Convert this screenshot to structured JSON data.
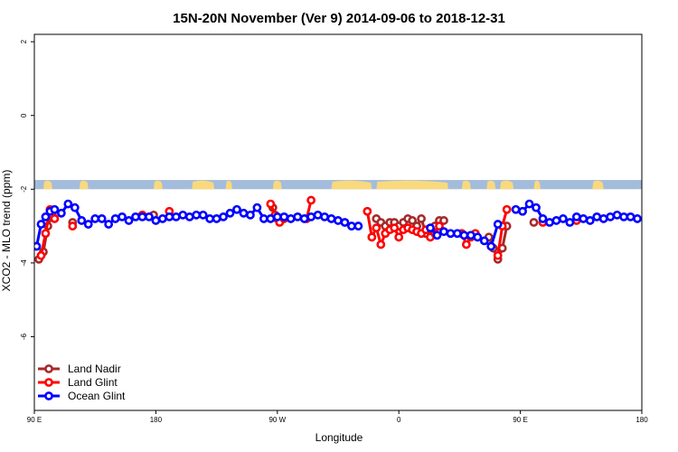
{
  "chart_data": {
    "type": "line",
    "title": "15N-20N November (Ver 9)   2014-09-06 to 2018-12-31",
    "xlabel": "Longitude",
    "ylabel": "XCO2 - MLO trend (ppm)",
    "xlim": [
      -90,
      180
    ],
    "ylim": [
      -8,
      2.2
    ],
    "x_ticks": [
      {
        "value": -90,
        "label": "90 E"
      },
      {
        "value": -36,
        "label": "180"
      },
      {
        "value": 18,
        "label": "90 W"
      },
      {
        "value": 72,
        "label": "0"
      },
      {
        "value": 126,
        "label": "90 E"
      },
      {
        "value": 180,
        "label": "180"
      }
    ],
    "y_ticks": [
      {
        "value": 2,
        "label": "2"
      },
      {
        "value": 0,
        "label": "0"
      },
      {
        "value": -2,
        "label": "-2"
      },
      {
        "value": -4,
        "label": "-4"
      },
      {
        "value": -6,
        "label": "-6"
      }
    ],
    "map_strip": {
      "y_top": -1.75,
      "y_bottom": -2.0,
      "ocean_color": "#a4bcdc",
      "land_color": "#f9d97c"
    },
    "legend_position": "bottom-left",
    "series": [
      {
        "name": "Land Nadir",
        "color": "#a52a2a",
        "segments": [
          [
            [
              -88,
              -3.9
            ],
            [
              -86,
              -3.7
            ],
            [
              -84,
              -3.0
            ],
            [
              -82,
              -2.7
            ]
          ],
          [
            [
              -73,
              -2.9
            ]
          ],
          [
            [
              -37,
              -2.7
            ]
          ],
          [
            [
              16,
              -2.5
            ],
            [
              18,
              -2.8
            ]
          ],
          [
            [
              62,
              -2.8
            ],
            [
              64,
              -2.9
            ],
            [
              66,
              -3.0
            ],
            [
              68,
              -2.9
            ],
            [
              70,
              -2.9
            ],
            [
              72,
              -3.0
            ],
            [
              74,
              -2.9
            ],
            [
              76,
              -2.8
            ],
            [
              78,
              -2.85
            ],
            [
              80,
              -3.0
            ],
            [
              82,
              -2.8
            ],
            [
              84,
              -3.2
            ],
            [
              86,
              -3.1
            ],
            [
              88,
              -3.0
            ],
            [
              90,
              -2.85
            ],
            [
              92,
              -2.85
            ]
          ],
          [
            [
              112,
              -3.3
            ],
            [
              114,
              -3.6
            ],
            [
              116,
              -3.9
            ],
            [
              118,
              -3.6
            ],
            [
              120,
              -3.0
            ]
          ],
          [
            [
              132,
              -2.9
            ]
          ]
        ]
      },
      {
        "name": "Land Glint",
        "color": "#ff0000",
        "segments": [
          [
            [
              -87,
              -3.8
            ],
            [
              -85,
              -3.2
            ],
            [
              -83,
              -2.55
            ],
            [
              -81,
              -2.8
            ]
          ],
          [
            [
              -73,
              -3.0
            ]
          ],
          [
            [
              -42,
              -2.7
            ]
          ],
          [
            [
              -30,
              -2.6
            ]
          ],
          [
            [
              15,
              -2.4
            ],
            [
              17,
              -2.7
            ],
            [
              19,
              -2.9
            ],
            [
              21,
              -2.8
            ]
          ],
          [
            [
              31,
              -2.8
            ],
            [
              33,
              -2.3
            ]
          ],
          [
            [
              58,
              -2.6
            ],
            [
              60,
              -3.3
            ],
            [
              62,
              -3.05
            ],
            [
              64,
              -3.5
            ],
            [
              66,
              -3.2
            ],
            [
              68,
              -3.1
            ],
            [
              70,
              -3.05
            ],
            [
              72,
              -3.3
            ],
            [
              74,
              -3.1
            ],
            [
              76,
              -3.05
            ],
            [
              78,
              -3.1
            ],
            [
              80,
              -3.15
            ],
            [
              82,
              -3.2
            ],
            [
              84,
              -3.1
            ],
            [
              86,
              -3.3
            ],
            [
              88,
              -3.2
            ],
            [
              90,
              -3.0
            ]
          ],
          [
            [
              100,
              -3.2
            ],
            [
              102,
              -3.5
            ],
            [
              104,
              -3.3
            ],
            [
              106,
              -3.2
            ]
          ],
          [
            [
              116,
              -3.8
            ],
            [
              118,
              -3.0
            ],
            [
              120,
              -2.55
            ]
          ],
          [
            [
              136,
              -2.9
            ]
          ],
          [
            [
              151,
              -2.85
            ]
          ]
        ]
      },
      {
        "name": "Ocean Glint",
        "color": "#0000ff",
        "segments": [
          [
            [
              -89,
              -3.55
            ],
            [
              -87,
              -2.95
            ],
            [
              -85,
              -2.75
            ],
            [
              -83,
              -2.6
            ],
            [
              -81,
              -2.55
            ],
            [
              -78,
              -2.65
            ],
            [
              -75,
              -2.4
            ],
            [
              -72,
              -2.5
            ],
            [
              -69,
              -2.85
            ],
            [
              -66,
              -2.95
            ],
            [
              -63,
              -2.8
            ],
            [
              -60,
              -2.8
            ],
            [
              -57,
              -2.95
            ],
            [
              -54,
              -2.8
            ],
            [
              -51,
              -2.75
            ],
            [
              -48,
              -2.85
            ],
            [
              -45,
              -2.75
            ],
            [
              -42,
              -2.75
            ],
            [
              -39,
              -2.75
            ],
            [
              -36,
              -2.85
            ],
            [
              -33,
              -2.8
            ],
            [
              -30,
              -2.75
            ],
            [
              -27,
              -2.75
            ],
            [
              -24,
              -2.7
            ],
            [
              -21,
              -2.75
            ],
            [
              -18,
              -2.7
            ],
            [
              -15,
              -2.7
            ],
            [
              -12,
              -2.8
            ],
            [
              -9,
              -2.8
            ],
            [
              -6,
              -2.75
            ],
            [
              -3,
              -2.65
            ],
            [
              0,
              -2.55
            ],
            [
              3,
              -2.65
            ],
            [
              6,
              -2.7
            ],
            [
              9,
              -2.5
            ],
            [
              12,
              -2.8
            ],
            [
              15,
              -2.8
            ],
            [
              18,
              -2.75
            ],
            [
              21,
              -2.75
            ],
            [
              24,
              -2.8
            ],
            [
              27,
              -2.75
            ],
            [
              30,
              -2.8
            ],
            [
              33,
              -2.75
            ],
            [
              36,
              -2.7
            ],
            [
              39,
              -2.75
            ],
            [
              42,
              -2.8
            ],
            [
              45,
              -2.85
            ],
            [
              48,
              -2.9
            ],
            [
              51,
              -3.0
            ],
            [
              54,
              -3.0
            ]
          ],
          [
            [
              86,
              -3.05
            ],
            [
              89,
              -3.25
            ],
            [
              92,
              -3.15
            ],
            [
              95,
              -3.2
            ],
            [
              98,
              -3.2
            ],
            [
              101,
              -3.25
            ],
            [
              104,
              -3.25
            ],
            [
              107,
              -3.3
            ],
            [
              110,
              -3.4
            ],
            [
              113,
              -3.55
            ],
            [
              116,
              -2.95
            ]
          ],
          [
            [
              124,
              -2.55
            ],
            [
              127,
              -2.6
            ],
            [
              130,
              -2.4
            ],
            [
              133,
              -2.5
            ],
            [
              136,
              -2.8
            ],
            [
              139,
              -2.9
            ],
            [
              142,
              -2.85
            ],
            [
              145,
              -2.8
            ],
            [
              148,
              -2.9
            ],
            [
              151,
              -2.75
            ],
            [
              154,
              -2.8
            ],
            [
              157,
              -2.85
            ],
            [
              160,
              -2.75
            ],
            [
              163,
              -2.8
            ],
            [
              166,
              -2.75
            ],
            [
              169,
              -2.7
            ],
            [
              172,
              -2.75
            ],
            [
              175,
              -2.75
            ],
            [
              178,
              -2.8
            ]
          ]
        ]
      }
    ]
  }
}
